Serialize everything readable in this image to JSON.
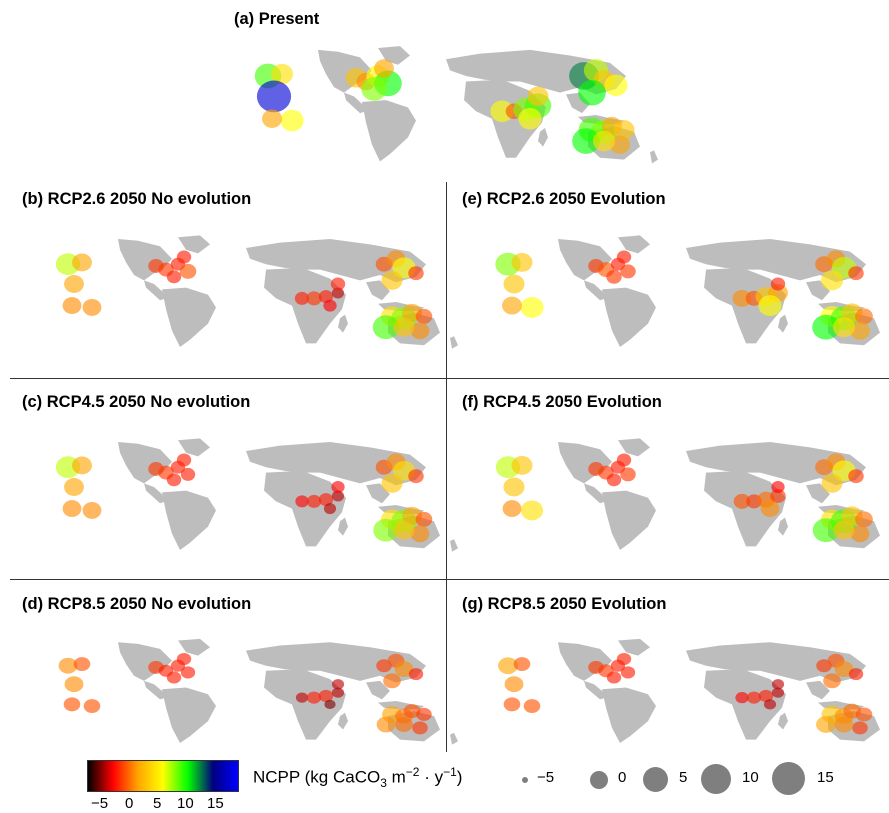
{
  "panels": [
    {
      "id": "a",
      "title": "(a) Present"
    },
    {
      "id": "b",
      "title": "(b) RCP2.6 2050 No evolution"
    },
    {
      "id": "e",
      "title": "(e) RCP2.6 2050 Evolution"
    },
    {
      "id": "c",
      "title": "(c) RCP4.5 2050 No evolution"
    },
    {
      "id": "f",
      "title": "(f) RCP4.5 2050 Evolution"
    },
    {
      "id": "d",
      "title": "(d) RCP8.5 2050 No evolution"
    },
    {
      "id": "g",
      "title": "(g) RCP8.5 2050 Evolution"
    }
  ],
  "legend": {
    "title_prefix": "NCPP (kg CaCO",
    "title_sub": "3",
    "title_mid1": " m",
    "title_sup1": "−2",
    "title_mid2": " · y",
    "title_sup2": "−1",
    "title_suffix": ")",
    "colorbar_ticks": [
      "−5",
      "0",
      "5",
      "10",
      "15"
    ],
    "colorbar_colors": [
      "#000000",
      "#ff0000",
      "#ffa500",
      "#ffff00",
      "#00ff00",
      "#000080",
      "#0000ff"
    ],
    "size_labels": [
      "−5",
      "0",
      "5",
      "10",
      "15"
    ]
  }
}
